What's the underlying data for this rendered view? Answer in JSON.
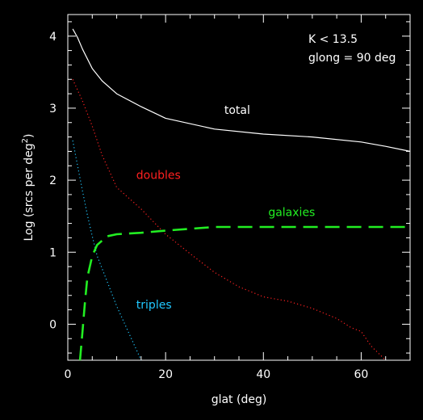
{
  "chart_data": {
    "type": "line",
    "xlabel": "glat (deg)",
    "ylabel_main": "Log (srcs per deg",
    "ylabel_sup": "2",
    "ylabel_close": ")",
    "xlim": [
      0,
      70
    ],
    "ylim": [
      -0.5,
      4.3
    ],
    "xticks": [
      0,
      20,
      40,
      60
    ],
    "yticks": [
      0,
      1,
      2,
      3,
      4
    ],
    "grid": false,
    "annotations": [
      "K < 13.5",
      "glong = 90 deg"
    ],
    "series": [
      {
        "name": "total",
        "color": "#ffffff",
        "style": "solid",
        "label_at": [
          32,
          2.92
        ],
        "points": [
          [
            1,
            4.1
          ],
          [
            2,
            3.98
          ],
          [
            3,
            3.82
          ],
          [
            5,
            3.55
          ],
          [
            7,
            3.38
          ],
          [
            10,
            3.2
          ],
          [
            15,
            3.02
          ],
          [
            20,
            2.86
          ],
          [
            30,
            2.71
          ],
          [
            40,
            2.64
          ],
          [
            50,
            2.6
          ],
          [
            60,
            2.53
          ],
          [
            65,
            2.47
          ],
          [
            70,
            2.4
          ]
        ]
      },
      {
        "name": "doubles",
        "color": "#ff2020",
        "style": "dotted",
        "label_at": [
          14,
          2.02
        ],
        "points": [
          [
            1,
            3.4
          ],
          [
            3,
            3.1
          ],
          [
            5,
            2.75
          ],
          [
            7,
            2.35
          ],
          [
            10,
            1.9
          ],
          [
            15,
            1.6
          ],
          [
            20,
            1.25
          ],
          [
            25,
            0.98
          ],
          [
            30,
            0.72
          ],
          [
            35,
            0.52
          ],
          [
            40,
            0.38
          ],
          [
            45,
            0.32
          ],
          [
            50,
            0.22
          ],
          [
            55,
            0.08
          ],
          [
            58,
            -0.05
          ],
          [
            60,
            -0.1
          ],
          [
            62,
            -0.3
          ],
          [
            65,
            -0.5
          ]
        ]
      },
      {
        "name": "triples",
        "color": "#20c8ff",
        "style": "dotted",
        "label_at": [
          14,
          0.22
        ],
        "points": [
          [
            1,
            2.55
          ],
          [
            2,
            2.2
          ],
          [
            3,
            1.85
          ],
          [
            4,
            1.52
          ],
          [
            5,
            1.22
          ],
          [
            6,
            0.95
          ],
          [
            8,
            0.6
          ],
          [
            10,
            0.25
          ],
          [
            12,
            -0.05
          ],
          [
            14,
            -0.35
          ],
          [
            15,
            -0.5
          ]
        ]
      },
      {
        "name": "galaxies",
        "color": "#22ee22",
        "style": "dashed",
        "label_at": [
          41,
          1.5
        ],
        "points": [
          [
            2.5,
            -0.5
          ],
          [
            3,
            -0.1
          ],
          [
            3.5,
            0.3
          ],
          [
            4,
            0.65
          ],
          [
            5,
            0.95
          ],
          [
            6,
            1.1
          ],
          [
            8,
            1.22
          ],
          [
            10,
            1.25
          ],
          [
            15,
            1.27
          ],
          [
            20,
            1.3
          ],
          [
            30,
            1.35
          ],
          [
            40,
            1.35
          ],
          [
            50,
            1.35
          ],
          [
            60,
            1.35
          ],
          [
            70,
            1.35
          ]
        ]
      }
    ]
  }
}
